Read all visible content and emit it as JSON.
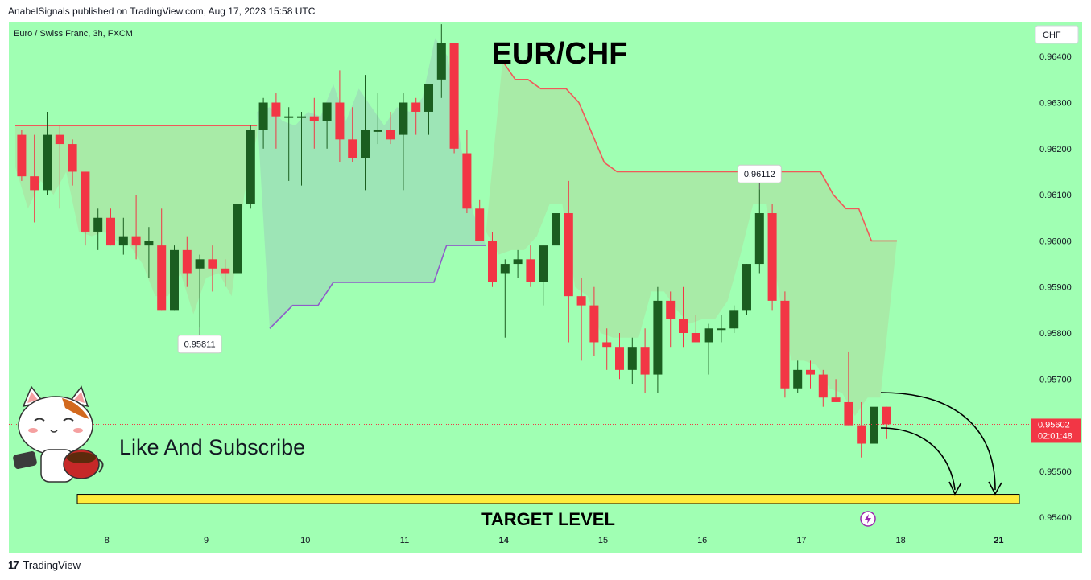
{
  "header": {
    "published_line": "AnabelSignals published on TradingView.com, Aug 17, 2023 15:58 UTC"
  },
  "footer": {
    "logo_glyph": "17",
    "brand": "TradingView"
  },
  "colors": {
    "background": "#a0ffb3",
    "bull": "#1b5e20",
    "bear": "#f23645",
    "resistance": "#f05959",
    "support": "#8e5cc8",
    "target_fill": "#ffeb3b"
  },
  "chart_data": {
    "type": "candlestick",
    "symbol_line": "Euro / Swiss Franc, 3h, FXCM",
    "title": "EUR/CHF",
    "currency": "CHF",
    "ylim": [
      0.9535,
      0.9645
    ],
    "y_ticks": [
      "0.96400",
      "0.96300",
      "0.96200",
      "0.96100",
      "0.96000",
      "0.95900",
      "0.95800",
      "0.95700",
      "0.95600",
      "0.95500",
      "0.95400"
    ],
    "x_ticks": [
      {
        "label": "8",
        "bar": 7.2,
        "bold": false
      },
      {
        "label": "9",
        "bar": 15,
        "bold": false
      },
      {
        "label": "10",
        "bar": 22.8,
        "bold": false
      },
      {
        "label": "11",
        "bar": 30.6,
        "bold": false
      },
      {
        "label": "14",
        "bar": 38.4,
        "bold": true
      },
      {
        "label": "15",
        "bar": 46.2,
        "bold": false
      },
      {
        "label": "16",
        "bar": 54,
        "bold": false
      },
      {
        "label": "17",
        "bar": 61.8,
        "bold": false
      },
      {
        "label": "18",
        "bar": 69.6,
        "bold": false
      },
      {
        "label": "21",
        "bar": 77.3,
        "bold": true
      }
    ],
    "candles": [
      {
        "o": 0.9623,
        "h": 0.9624,
        "l": 0.9613,
        "c": 0.9614
      },
      {
        "o": 0.9614,
        "h": 0.9623,
        "l": 0.9604,
        "c": 0.9611
      },
      {
        "o": 0.9611,
        "h": 0.9628,
        "l": 0.961,
        "c": 0.9623
      },
      {
        "o": 0.9623,
        "h": 0.9625,
        "l": 0.9607,
        "c": 0.9621
      },
      {
        "o": 0.9621,
        "h": 0.9622,
        "l": 0.9612,
        "c": 0.9615
      },
      {
        "o": 0.9615,
        "h": 0.9615,
        "l": 0.9599,
        "c": 0.9602
      },
      {
        "o": 0.9602,
        "h": 0.9607,
        "l": 0.9598,
        "c": 0.9605
      },
      {
        "o": 0.9605,
        "h": 0.9607,
        "l": 0.9599,
        "c": 0.9599
      },
      {
        "o": 0.9599,
        "h": 0.9605,
        "l": 0.9597,
        "c": 0.9601
      },
      {
        "o": 0.9601,
        "h": 0.961,
        "l": 0.9596,
        "c": 0.9599
      },
      {
        "o": 0.9599,
        "h": 0.9603,
        "l": 0.9592,
        "c": 0.96
      },
      {
        "o": 0.9599,
        "h": 0.9607,
        "l": 0.9585,
        "c": 0.9585
      },
      {
        "o": 0.9585,
        "h": 0.9599,
        "l": 0.9585,
        "c": 0.9598
      },
      {
        "o": 0.9598,
        "h": 0.9601,
        "l": 0.959,
        "c": 0.9593
      },
      {
        "o": 0.9594,
        "h": 0.9597,
        "l": 0.95811,
        "c": 0.9596
      },
      {
        "o": 0.9596,
        "h": 0.9599,
        "l": 0.9589,
        "c": 0.9594
      },
      {
        "o": 0.9594,
        "h": 0.9596,
        "l": 0.959,
        "c": 0.9593
      },
      {
        "o": 0.9593,
        "h": 0.961,
        "l": 0.9585,
        "c": 0.9608
      },
      {
        "o": 0.9608,
        "h": 0.9625,
        "l": 0.9607,
        "c": 0.9624
      },
      {
        "o": 0.9624,
        "h": 0.9631,
        "l": 0.962,
        "c": 0.963
      },
      {
        "o": 0.963,
        "h": 0.9632,
        "l": 0.962,
        "c": 0.9627
      },
      {
        "o": 0.9627,
        "h": 0.9629,
        "l": 0.9613,
        "c": 0.9627
      },
      {
        "o": 0.9627,
        "h": 0.9628,
        "l": 0.9612,
        "c": 0.9627
      },
      {
        "o": 0.9627,
        "h": 0.9631,
        "l": 0.962,
        "c": 0.9626
      },
      {
        "o": 0.9626,
        "h": 0.963,
        "l": 0.962,
        "c": 0.963
      },
      {
        "o": 0.963,
        "h": 0.9637,
        "l": 0.9617,
        "c": 0.9622
      },
      {
        "o": 0.9622,
        "h": 0.9629,
        "l": 0.9617,
        "c": 0.9618
      },
      {
        "o": 0.9618,
        "h": 0.9636,
        "l": 0.9611,
        "c": 0.9624
      },
      {
        "o": 0.9624,
        "h": 0.9632,
        "l": 0.9621,
        "c": 0.9624
      },
      {
        "o": 0.9624,
        "h": 0.9628,
        "l": 0.9621,
        "c": 0.9622
      },
      {
        "o": 0.9623,
        "h": 0.9632,
        "l": 0.9611,
        "c": 0.963
      },
      {
        "o": 0.963,
        "h": 0.9631,
        "l": 0.9623,
        "c": 0.9628
      },
      {
        "o": 0.9628,
        "h": 0.9633,
        "l": 0.9623,
        "c": 0.9634
      },
      {
        "o": 0.9635,
        "h": 0.9647,
        "l": 0.9631,
        "c": 0.9643
      },
      {
        "o": 0.9643,
        "h": 0.9643,
        "l": 0.9619,
        "c": 0.962
      },
      {
        "o": 0.9619,
        "h": 0.9624,
        "l": 0.9606,
        "c": 0.9607
      },
      {
        "o": 0.9607,
        "h": 0.9609,
        "l": 0.96,
        "c": 0.96
      },
      {
        "o": 0.96,
        "h": 0.9602,
        "l": 0.959,
        "c": 0.9591
      },
      {
        "o": 0.9593,
        "h": 0.9596,
        "l": 0.9579,
        "c": 0.9595
      },
      {
        "o": 0.9595,
        "h": 0.9598,
        "l": 0.9592,
        "c": 0.9596
      },
      {
        "o": 0.9596,
        "h": 0.9599,
        "l": 0.959,
        "c": 0.9591
      },
      {
        "o": 0.9591,
        "h": 0.9599,
        "l": 0.9586,
        "c": 0.9599
      },
      {
        "o": 0.9599,
        "h": 0.9607,
        "l": 0.9597,
        "c": 0.9606
      },
      {
        "o": 0.9606,
        "h": 0.9613,
        "l": 0.9578,
        "c": 0.9588
      },
      {
        "o": 0.9588,
        "h": 0.9592,
        "l": 0.9574,
        "c": 0.9586
      },
      {
        "o": 0.9586,
        "h": 0.959,
        "l": 0.9575,
        "c": 0.9578
      },
      {
        "o": 0.9578,
        "h": 0.9581,
        "l": 0.9572,
        "c": 0.9577
      },
      {
        "o": 0.9577,
        "h": 0.958,
        "l": 0.957,
        "c": 0.9572
      },
      {
        "o": 0.9572,
        "h": 0.9579,
        "l": 0.9569,
        "c": 0.9577
      },
      {
        "o": 0.9577,
        "h": 0.9581,
        "l": 0.9567,
        "c": 0.9571
      },
      {
        "o": 0.9571,
        "h": 0.959,
        "l": 0.9567,
        "c": 0.9587
      },
      {
        "o": 0.9587,
        "h": 0.9589,
        "l": 0.9577,
        "c": 0.9583
      },
      {
        "o": 0.9583,
        "h": 0.959,
        "l": 0.9577,
        "c": 0.958
      },
      {
        "o": 0.958,
        "h": 0.9584,
        "l": 0.9578,
        "c": 0.9578
      },
      {
        "o": 0.9578,
        "h": 0.9582,
        "l": 0.9571,
        "c": 0.9581
      },
      {
        "o": 0.9581,
        "h": 0.9584,
        "l": 0.9578,
        "c": 0.9581
      },
      {
        "o": 0.9581,
        "h": 0.9586,
        "l": 0.958,
        "c": 0.9585
      },
      {
        "o": 0.9585,
        "h": 0.9595,
        "l": 0.9584,
        "c": 0.9595
      },
      {
        "o": 0.9595,
        "h": 0.96112,
        "l": 0.9593,
        "c": 0.9606
      },
      {
        "o": 0.9606,
        "h": 0.9608,
        "l": 0.9585,
        "c": 0.9587
      },
      {
        "o": 0.9587,
        "h": 0.9589,
        "l": 0.9566,
        "c": 0.9568
      },
      {
        "o": 0.9568,
        "h": 0.9574,
        "l": 0.9567,
        "c": 0.9572
      },
      {
        "o": 0.9572,
        "h": 0.9574,
        "l": 0.9568,
        "c": 0.9571
      },
      {
        "o": 0.9571,
        "h": 0.9572,
        "l": 0.9564,
        "c": 0.9566
      },
      {
        "o": 0.9566,
        "h": 0.957,
        "l": 0.9565,
        "c": 0.9565
      },
      {
        "o": 0.9565,
        "h": 0.9576,
        "l": 0.956,
        "c": 0.956
      },
      {
        "o": 0.956,
        "h": 0.9565,
        "l": 0.9553,
        "c": 0.9556
      },
      {
        "o": 0.9556,
        "h": 0.9571,
        "l": 0.9552,
        "c": 0.9564
      },
      {
        "o": 0.9564,
        "h": 0.9564,
        "l": 0.9557,
        "c": 0.95602
      }
    ],
    "resistance_line_1": {
      "from_bar": 0,
      "to_bar": 19,
      "y": 0.9625
    },
    "resistance_line_2": [
      {
        "bar": 38.3,
        "y": 0.9639
      },
      {
        "bar": 39.3,
        "y": 0.9635
      },
      {
        "bar": 40.3,
        "y": 0.9635
      },
      {
        "bar": 41.3,
        "y": 0.9633
      },
      {
        "bar": 43.3,
        "y": 0.9633
      },
      {
        "bar": 44.3,
        "y": 0.963
      },
      {
        "bar": 46.3,
        "y": 0.9617
      },
      {
        "bar": 47.3,
        "y": 0.9615
      },
      {
        "bar": 49.3,
        "y": 0.9615
      },
      {
        "bar": 63.3,
        "y": 0.9615
      },
      {
        "bar": 64.3,
        "y": 0.961
      },
      {
        "bar": 65.3,
        "y": 0.9607
      },
      {
        "bar": 66.3,
        "y": 0.9607
      },
      {
        "bar": 67.3,
        "y": 0.96
      },
      {
        "bar": 69.3,
        "y": 0.96
      }
    ],
    "support_line": [
      {
        "bar": 20,
        "y": 0.9581
      },
      {
        "bar": 21.8,
        "y": 0.9586
      },
      {
        "bar": 23.8,
        "y": 0.9586
      },
      {
        "bar": 25,
        "y": 0.9591
      },
      {
        "bar": 32.9,
        "y": 0.9591
      },
      {
        "bar": 33.9,
        "y": 0.9599
      },
      {
        "bar": 37,
        "y": 0.9599
      }
    ],
    "annotations": {
      "low_label": {
        "text": "0.95811",
        "bar": 14,
        "y": 0.95811
      },
      "high_label": {
        "text": "0.96112",
        "bar": 58,
        "y": 0.96112
      },
      "cta": "Like And Subscribe",
      "target_label": "TARGET LEVEL",
      "target_y": [
        0.9543,
        0.9545
      ]
    },
    "price_tag": {
      "price": "0.95602",
      "countdown": "02:01:48",
      "y": 0.95602
    }
  }
}
